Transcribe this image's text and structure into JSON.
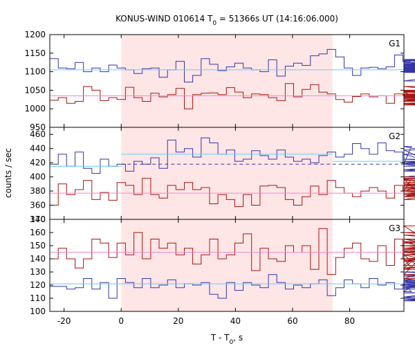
{
  "chart_data": {
    "type": "line",
    "title_parts": [
      "KONUS-WIND 010614 T",
      "0",
      " = 51366s UT (14:16:06.000)"
    ],
    "xlabel_parts": [
      "T - T",
      "0",
      ", s"
    ],
    "ylabel": "counts / sec",
    "xlim": [
      -25,
      99
    ],
    "x_ticks": [
      -20,
      0,
      20,
      40,
      60,
      80
    ],
    "shaded_interval": [
      0,
      74
    ],
    "bin_width": 2.944,
    "x_start": -25,
    "colors": {
      "blue": "#3333aa",
      "red": "#aa1111",
      "cyan": "#66ccff",
      "pink": "#ee88cc",
      "shade": "#ffe6e6"
    },
    "panels": [
      {
        "label": "G1",
        "ylim": [
          950,
          1200
        ],
        "y_ticks": [
          950,
          1000,
          1050,
          1100,
          1150,
          1200
        ],
        "series": [
          {
            "color_key": "blue",
            "values": [
              1135,
              1110,
              1108,
              1125,
              1100,
              1110,
              1100,
              1118,
              1110,
              1105,
              1095,
              1108,
              1110,
              1085,
              1105,
              1128,
              1072,
              1090,
              1135,
              1120,
              1103,
              1113,
              1123,
              1110,
              1105,
              1100,
              1132,
              1088,
              1115,
              1123,
              1117,
              1143,
              1148,
              1160,
              1140,
              1110,
              1090,
              1110,
              1112,
              1108,
              1113,
              1145,
              1128,
              1125,
              1133,
              1130,
              1105,
              1105,
              1133,
              1108,
              1102,
              1113,
              1075,
              1108,
              1120,
              1105,
              1102,
              1133,
              1110,
              1120,
              1108,
              1117,
              1105,
              1125,
              1118,
              1120,
              1098,
              1110,
              1115,
              1110,
              1103,
              1098,
              1120,
              1115,
              1110,
              1105,
              1122,
              1110,
              1112,
              1118,
              1125,
              1100,
              1110,
              1105
            ]
          },
          {
            "color_key": "red",
            "values": [
              1023,
              1030,
              1015,
              1020,
              1060,
              1050,
              1022,
              1030,
              1025,
              1058,
              1030,
              1020,
              1042,
              1032,
              1038,
              1055,
              1000,
              1038,
              1042,
              1043,
              1038,
              1057,
              1045,
              1030,
              1040,
              1038,
              1030,
              1022,
              1068,
              1032,
              1052,
              1065,
              1045,
              1040,
              1025,
              1018,
              1033,
              1040,
              1032,
              1035,
              1015,
              1040,
              1037,
              1030,
              1045,
              1020,
              1038,
              1013,
              1015,
              1020,
              1032,
              1030,
              1047,
              1015,
              1020,
              1030,
              1035,
              1038,
              1022,
              1060,
              1022,
              1030,
              1030,
              1010,
              1030,
              1045,
              1022,
              1050,
              1030,
              1025,
              1040,
              1038,
              1030,
              1035,
              1030,
              1022,
              1048,
              1030,
              1040,
              1035,
              1028,
              1033,
              1030,
              1025
            ]
          },
          {
            "color_key": "cyan",
            "level_values": [
              1105,
              1105,
              1105
            ]
          },
          {
            "color_key": "pink",
            "level_values": [
              1035,
              1035,
              1035
            ]
          }
        ]
      },
      {
        "label": "G2",
        "ylim": [
          340,
          470
        ],
        "y_ticks": [
          340,
          360,
          380,
          400,
          420,
          440,
          460
        ],
        "series": [
          {
            "color_key": "blue",
            "values": [
              418,
              432,
              415,
              435,
              412,
              405,
              425,
              415,
              418,
              408,
              422,
              418,
              427,
              412,
              452,
              435,
              440,
              428,
              455,
              448,
              432,
              438,
              422,
              425,
              437,
              430,
              425,
              438,
              428,
              422,
              425,
              420,
              430,
              435,
              428,
              432,
              447,
              440,
              432,
              448,
              437,
              435,
              418,
              443,
              438,
              422,
              420,
              418,
              432,
              410,
              418,
              422,
              408,
              420,
              418,
              400,
              415,
              422,
              420,
              418,
              425,
              415,
              420,
              418,
              422,
              418,
              425,
              420,
              418,
              420,
              418,
              422,
              420,
              418,
              420,
              418,
              420,
              420,
              418,
              420,
              418,
              420,
              420,
              418
            ]
          },
          {
            "color_key": "red",
            "values": [
              360,
              390,
              375,
              382,
              395,
              368,
              378,
              367,
              392,
              388,
              375,
              398,
              375,
              370,
              388,
              382,
              392,
              382,
              385,
              362,
              375,
              368,
              358,
              375,
              360,
              387,
              388,
              385,
              368,
              360,
              372,
              387,
              375,
              395,
              385,
              377,
              372,
              380,
              385,
              380,
              370,
              388,
              380,
              397,
              375,
              372,
              385,
              380,
              397,
              380,
              372,
              390,
              368,
              388,
              377,
              372,
              372,
              380,
              390,
              377,
              383,
              375,
              375,
              387,
              398,
              392,
              400,
              392,
              398,
              385,
              395,
              387,
              390,
              385,
              380,
              392,
              395,
              400,
              390,
              380,
              385,
              390,
              380,
              385
            ]
          },
          {
            "color_key": "cyan",
            "level_values": [
              415,
              432,
              422
            ]
          },
          {
            "color_key": "pink",
            "level_values": [
              377,
              377,
              377
            ]
          },
          {
            "color_key": "blue",
            "dashed": true,
            "level_values": [
              null,
              418,
              418
            ]
          }
        ]
      },
      {
        "label": "G3",
        "ylim": [
          100,
          170
        ],
        "y_ticks": [
          100,
          110,
          120,
          130,
          140,
          150,
          160,
          170
        ],
        "series": [
          {
            "color_key": "blue",
            "values": [
              119,
              119,
              117,
              118,
              125,
              117,
              122,
              110,
              125,
              122,
              118,
              125,
              118,
              120,
              124,
              118,
              121,
              120,
              122,
              113,
              110,
              122,
              116,
              122,
              120,
              118,
              128,
              122,
              117,
              120,
              118,
              121,
              124,
              112,
              118,
              124,
              121,
              118,
              125,
              120,
              122,
              117,
              121,
              115,
              123,
              119,
              121,
              117,
              124,
              111,
              117,
              128,
              124,
              121,
              110,
              122,
              118,
              128,
              122,
              114,
              118,
              120,
              125,
              108,
              118,
              122,
              127,
              109,
              118,
              122,
              130,
              118,
              122,
              119,
              120,
              118,
              122,
              121,
              120,
              122,
              118,
              121,
              120,
              122
            ]
          },
          {
            "color_key": "red",
            "values": [
              140,
              148,
              140,
              133,
              140,
              155,
              152,
              141,
              152,
              143,
              160,
              140,
              155,
              148,
              152,
              143,
              148,
              136,
              143,
              155,
              140,
              143,
              152,
              159,
              131,
              148,
              140,
              138,
              150,
              145,
              150,
              132,
              163,
              128,
              141,
              148,
              152,
              140,
              138,
              150,
              135,
              155,
              140,
              133,
              143,
              128,
              153,
              143,
              135,
              165,
              133,
              138,
              146,
              125,
              148,
              155,
              138,
              140,
              145,
              132,
              153,
              140,
              148,
              147,
              158,
              145,
              150,
              139,
              148,
              143,
              155,
              146,
              140,
              150,
              148,
              147,
              160,
              146,
              150,
              145,
              152,
              148,
              155,
              150
            ]
          },
          {
            "color_key": "cyan",
            "level_values": [
              121,
              121,
              121
            ]
          },
          {
            "color_key": "pink",
            "level_values": [
              145,
              145,
              145
            ]
          }
        ]
      }
    ]
  }
}
